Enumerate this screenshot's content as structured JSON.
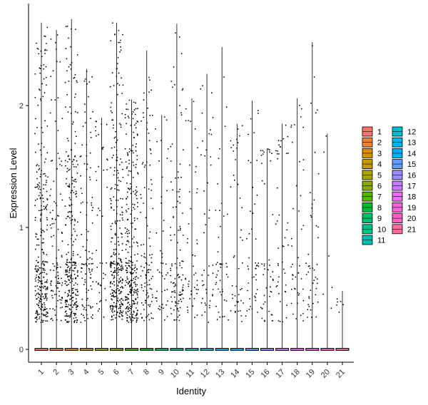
{
  "chart_data": {
    "type": "violin",
    "xlabel": "Identity",
    "ylabel": "Expression Level",
    "ylim": [
      -0.1,
      2.85
    ],
    "yticks": [
      0,
      1,
      2
    ],
    "categories": [
      "1",
      "2",
      "3",
      "4",
      "5",
      "6",
      "7",
      "8",
      "9",
      "10",
      "11",
      "12",
      "13",
      "14",
      "15",
      "16",
      "17",
      "18",
      "19",
      "20",
      "21"
    ],
    "max_values": [
      2.68,
      2.62,
      2.71,
      2.3,
      1.9,
      2.68,
      2.05,
      2.45,
      1.92,
      2.67,
      2.06,
      2.26,
      2.48,
      1.85,
      2.04,
      1.65,
      1.85,
      2.06,
      2.52,
      1.77,
      0.48
    ],
    "legend_colors": [
      "#F8766D",
      "#EB8335",
      "#DA8F00",
      "#C49A00",
      "#A9A400",
      "#86AC00",
      "#53B400",
      "#00BA38",
      "#00BE67",
      "#00C08D",
      "#00C0AF",
      "#00BDD0",
      "#00B7E9",
      "#00ADFA",
      "#619CFF",
      "#9D8AFF",
      "#C77CFF",
      "#E76BF3",
      "#F863DF",
      "#FF62C5",
      "#FF6BA5"
    ],
    "legend_position": "right"
  }
}
